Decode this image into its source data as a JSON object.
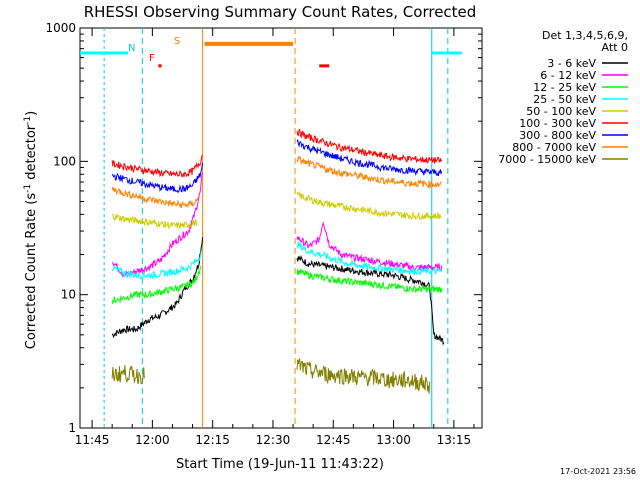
{
  "chart_data": {
    "type": "line",
    "title": "RHESSI Observing Summary Count Rates, Corrected",
    "xlabel": "Start Time (19-Jun-11 11:43:22)",
    "ylabel_main": "Corrected Count Rate (s",
    "ylabel_sup1": "-1",
    "ylabel_mid": " detector",
    "ylabel_sup2": "-1",
    "ylabel_end": ")",
    "y_scale": "log",
    "ylim": [
      1,
      1000
    ],
    "xlim_minutes": [
      -3,
      97
    ],
    "y_ticks": [
      "1",
      "10",
      "100",
      "1000"
    ],
    "x_ticks": [
      {
        "label": "11:45",
        "min": 0
      },
      {
        "label": "12:00",
        "min": 15
      },
      {
        "label": "12:15",
        "min": 30
      },
      {
        "label": "12:30",
        "min": 45
      },
      {
        "label": "12:45",
        "min": 60
      },
      {
        "label": "13:00",
        "min": 75
      },
      {
        "label": "13:15",
        "min": 90
      }
    ],
    "legend_title_1": "Det 1,3,4,5,6,9,",
    "legend_title_2": "Att 0",
    "legend_position": "top-right",
    "series": [
      {
        "name": "3 - 6 keV",
        "color": "#000000",
        "p1": [
          [
            5,
            5
          ],
          [
            8,
            5.5
          ],
          [
            11,
            5.5
          ],
          [
            14,
            6.5
          ],
          [
            17,
            7
          ],
          [
            21,
            8.5
          ],
          [
            23,
            11
          ],
          [
            25,
            13
          ],
          [
            26.5,
            17
          ],
          [
            27.5,
            27
          ]
        ],
        "p2": [
          [
            51,
            19
          ],
          [
            54,
            17
          ],
          [
            57,
            16.5
          ],
          [
            60,
            16
          ],
          [
            63,
            15.5
          ],
          [
            66,
            15
          ],
          [
            70,
            14.5
          ],
          [
            75,
            14
          ],
          [
            79,
            13
          ],
          [
            82,
            12.5
          ],
          [
            84,
            11.5
          ],
          [
            85,
            5
          ],
          [
            87.5,
            4.5
          ]
        ]
      },
      {
        "name": "6 - 12 keV",
        "color": "#ff00ff",
        "p1": [
          [
            5,
            18
          ],
          [
            8,
            14
          ],
          [
            11,
            15
          ],
          [
            14,
            16
          ],
          [
            17,
            18
          ],
          [
            20,
            24
          ],
          [
            22,
            27
          ],
          [
            24,
            30
          ],
          [
            25.5,
            40
          ],
          [
            27,
            60
          ],
          [
            27.5,
            85
          ]
        ],
        "p2": [
          [
            51,
            27
          ],
          [
            54,
            23
          ],
          [
            56.5,
            26
          ],
          [
            57.5,
            36
          ],
          [
            59,
            24
          ],
          [
            62,
            20
          ],
          [
            65,
            19
          ],
          [
            70,
            18
          ],
          [
            75,
            17
          ],
          [
            80,
            16
          ],
          [
            87,
            16
          ]
        ]
      },
      {
        "name": "12 - 25 keV",
        "color": "#00ff00",
        "p1": [
          [
            5,
            9
          ],
          [
            8,
            9.5
          ],
          [
            11,
            10
          ],
          [
            14,
            10
          ],
          [
            17,
            10.5
          ],
          [
            20,
            11
          ],
          [
            23,
            11.5
          ],
          [
            25.5,
            12.5
          ],
          [
            27,
            16
          ]
        ],
        "p2": [
          [
            51,
            15
          ],
          [
            54,
            14
          ],
          [
            57,
            13.5
          ],
          [
            60,
            13
          ],
          [
            64,
            12.5
          ],
          [
            70,
            12
          ],
          [
            75,
            11.5
          ],
          [
            80,
            11
          ],
          [
            87,
            11
          ]
        ]
      },
      {
        "name": "25 - 50 keV",
        "color": "#00ffff",
        "p1": [
          [
            5,
            16
          ],
          [
            8,
            14.5
          ],
          [
            11,
            14
          ],
          [
            15,
            14
          ],
          [
            18,
            14.5
          ],
          [
            21,
            15
          ],
          [
            24,
            16
          ],
          [
            26,
            18
          ],
          [
            27.5,
            21
          ]
        ],
        "p2": [
          [
            51,
            24
          ],
          [
            54,
            21
          ],
          [
            57,
            20
          ],
          [
            60,
            18.5
          ],
          [
            64,
            17
          ],
          [
            70,
            16
          ],
          [
            75,
            15.5
          ],
          [
            80,
            15
          ],
          [
            87,
            15
          ]
        ]
      },
      {
        "name": "50 - 100 keV",
        "color": "#cccc00",
        "p1": [
          [
            5,
            39
          ],
          [
            8,
            37
          ],
          [
            11,
            36
          ],
          [
            14,
            35
          ],
          [
            17,
            34
          ],
          [
            20,
            33
          ],
          [
            23,
            33
          ],
          [
            26,
            35
          ]
        ],
        "p2": [
          [
            51,
            56
          ],
          [
            54,
            52
          ],
          [
            57,
            49
          ],
          [
            60,
            47
          ],
          [
            64,
            45
          ],
          [
            68,
            43
          ],
          [
            72,
            41
          ],
          [
            76,
            40
          ],
          [
            80,
            39
          ],
          [
            87,
            39
          ]
        ]
      },
      {
        "name": "100 - 300 keV",
        "color": "#ff0000",
        "p1": [
          [
            5,
            96
          ],
          [
            8,
            92
          ],
          [
            11,
            88
          ],
          [
            14,
            85
          ],
          [
            17,
            82
          ],
          [
            20,
            80
          ],
          [
            23,
            80
          ],
          [
            25,
            84
          ],
          [
            27,
            100
          ],
          [
            27.5,
            115
          ]
        ],
        "p2": [
          [
            51,
            168
          ],
          [
            53,
            155
          ],
          [
            56,
            145
          ],
          [
            59,
            135
          ],
          [
            62,
            127
          ],
          [
            66,
            120
          ],
          [
            70,
            113
          ],
          [
            74,
            108
          ],
          [
            78,
            105
          ],
          [
            82,
            103
          ],
          [
            87,
            101
          ]
        ]
      },
      {
        "name": "300 - 800 keV",
        "color": "#0000ff",
        "p1": [
          [
            5,
            78
          ],
          [
            8,
            74
          ],
          [
            11,
            70
          ],
          [
            14,
            67
          ],
          [
            17,
            64
          ],
          [
            20,
            62
          ],
          [
            23,
            62
          ],
          [
            25,
            66
          ],
          [
            27,
            80
          ],
          [
            27.5,
            95
          ]
        ],
        "p2": [
          [
            51,
            140
          ],
          [
            53,
            130
          ],
          [
            56,
            120
          ],
          [
            59,
            112
          ],
          [
            62,
            105
          ],
          [
            66,
            98
          ],
          [
            70,
            93
          ],
          [
            74,
            88
          ],
          [
            78,
            86
          ],
          [
            82,
            84
          ],
          [
            87,
            82
          ]
        ]
      },
      {
        "name": "800 - 7000 keV",
        "color": "#ff8000",
        "p1": [
          [
            5,
            62
          ],
          [
            8,
            58
          ],
          [
            11,
            55
          ],
          [
            14,
            52
          ],
          [
            17,
            50
          ],
          [
            20,
            48
          ],
          [
            23,
            47
          ],
          [
            25,
            48
          ],
          [
            26.5,
            52
          ]
        ],
        "p2": [
          [
            51,
            105
          ],
          [
            53,
            98
          ],
          [
            56,
            92
          ],
          [
            59,
            86
          ],
          [
            62,
            82
          ],
          [
            66,
            78
          ],
          [
            70,
            74
          ],
          [
            74,
            71
          ],
          [
            78,
            69
          ],
          [
            82,
            68
          ],
          [
            87,
            67
          ]
        ]
      },
      {
        "name": "7000 - 15000 keV",
        "color": "#808000",
        "p1": [
          [
            5,
            2.5
          ],
          [
            8,
            2.6
          ],
          [
            11,
            2.5
          ],
          [
            13,
            2.5
          ]
        ],
        "p2": [
          [
            51,
            3
          ],
          [
            54,
            2.7
          ],
          [
            57,
            2.6
          ],
          [
            60,
            2.5
          ],
          [
            63,
            2.5
          ],
          [
            66,
            2.4
          ],
          [
            70,
            2.4
          ],
          [
            74,
            2.3
          ],
          [
            78,
            2.3
          ],
          [
            82,
            2.2
          ],
          [
            84,
            2.1
          ]
        ]
      }
    ],
    "cyan_level": 650,
    "orange_level": 760,
    "markers": {
      "n": "N",
      "f": "F",
      "s": "S"
    },
    "footer_date": "17-Oct-2021 23:56"
  }
}
